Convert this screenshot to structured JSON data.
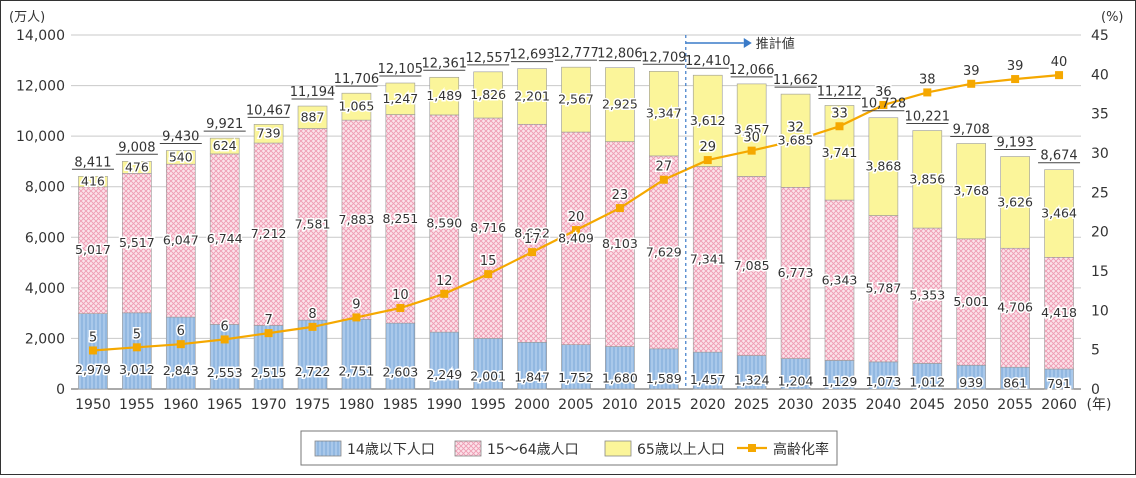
{
  "chart_data": {
    "type": "bar",
    "left_unit": "(万人)",
    "right_unit": "(%)",
    "x_unit": "(年)",
    "projection_label": "推計値",
    "left_ylim": [
      0,
      14000
    ],
    "left_ticks": [
      "0",
      "2,000",
      "4,000",
      "6,000",
      "8,000",
      "10,000",
      "12,000",
      "14,000"
    ],
    "right_ylim": [
      0,
      45
    ],
    "right_ticks": [
      "0",
      "5",
      "10",
      "15",
      "20",
      "25",
      "30",
      "35",
      "40",
      "45"
    ],
    "categories": [
      "1950",
      "1955",
      "1960",
      "1965",
      "1970",
      "1975",
      "1980",
      "1985",
      "1990",
      "1995",
      "2000",
      "2005",
      "2010",
      "2015",
      "2020",
      "2025",
      "2030",
      "2035",
      "2040",
      "2045",
      "2050",
      "2055",
      "2060"
    ],
    "series": [
      {
        "name": "14歳以下人口",
        "color": "#a9c8ea",
        "values": [
          2979,
          3012,
          2843,
          2553,
          2515,
          2722,
          2751,
          2603,
          2249,
          2001,
          1847,
          1752,
          1680,
          1589,
          1457,
          1324,
          1204,
          1129,
          1073,
          1012,
          939,
          861,
          791
        ],
        "labels": [
          "2,979",
          "3,012",
          "2,843",
          "2,553",
          "2,515",
          "2,722",
          "2,751",
          "2,603",
          "2,249",
          "2,001",
          "1,847",
          "1,752",
          "1,680",
          "1,589",
          "1,457",
          "1,324",
          "1,204",
          "1,129",
          "1,073",
          "1,012",
          "939",
          "861",
          "791"
        ]
      },
      {
        "name": "15～64歳人口",
        "color": "#f5c6d2",
        "values": [
          5017,
          5517,
          6047,
          6744,
          7212,
          7581,
          7883,
          8251,
          8590,
          8716,
          8622,
          8409,
          8103,
          7629,
          7341,
          7085,
          6773,
          6343,
          5787,
          5353,
          5001,
          4706,
          4418
        ],
        "labels": [
          "5,017",
          "5,517",
          "6,047",
          "6,744",
          "7,212",
          "7,581",
          "7,883",
          "8,251",
          "8,590",
          "8,716",
          "8,622",
          "8,409",
          "8,103",
          "7,629",
          "7,341",
          "7,085",
          "6,773",
          "6,343",
          "5,787",
          "5,353",
          "5,001",
          "4,706",
          "4,418"
        ]
      },
      {
        "name": "65歳以上人口",
        "color": "#fbf59a",
        "values": [
          416,
          476,
          540,
          624,
          739,
          887,
          1065,
          1247,
          1489,
          1826,
          2201,
          2567,
          2925,
          3347,
          3612,
          3657,
          3685,
          3741,
          3868,
          3856,
          3768,
          3626,
          3464
        ],
        "labels": [
          "416",
          "476",
          "540",
          "624",
          "739",
          "887",
          "1,065",
          "1,247",
          "1,489",
          "1,826",
          "2,201",
          "2,567",
          "2,925",
          "3,347",
          "3,612",
          "3,657",
          "3,685",
          "3,741",
          "3,868",
          "3,856",
          "3,768",
          "3,626",
          "3,464"
        ]
      }
    ],
    "totals": [
      "8,411",
      "9,008",
      "9,430",
      "9,921",
      "10,467",
      "11,194",
      "11,706",
      "12,105",
      "12,361",
      "12,557",
      "12,693",
      "12,777",
      "12,806",
      "12,709",
      "12,410",
      "12,066",
      "11,662",
      "11,212",
      "10,728",
      "10,221",
      "9,708",
      "9,193",
      "8,674"
    ],
    "aging_rate": {
      "name": "高齢化率",
      "color": "#f5a800",
      "values": [
        4.9,
        5.3,
        5.7,
        6.3,
        7.1,
        7.9,
        9.1,
        10.3,
        12.1,
        14.6,
        17.4,
        20.2,
        23.0,
        26.6,
        29.1,
        30.3,
        31.6,
        33.4,
        36.1,
        37.7,
        38.8,
        39.4,
        39.9
      ],
      "labels": [
        "5",
        "5",
        "6",
        "6",
        "7",
        "8",
        "9",
        "10",
        "12",
        "15",
        "17",
        "20",
        "23",
        "27",
        "29",
        "30",
        "32",
        "33",
        "36",
        "38",
        "39",
        "39",
        "40"
      ]
    }
  }
}
